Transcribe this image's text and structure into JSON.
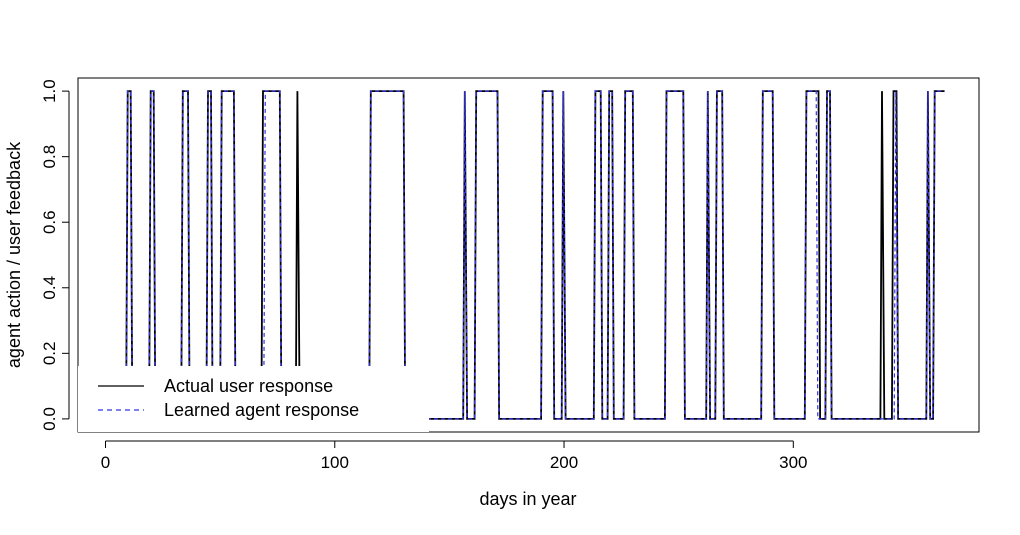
{
  "chart_data": {
    "type": "line",
    "title": "",
    "xlabel": "days in year",
    "ylabel": "agent action / user feedback",
    "xlim": [
      -12,
      381
    ],
    "ylim": [
      -0.04,
      1.04
    ],
    "xticks": [
      0,
      100,
      200,
      300
    ],
    "yticks": [
      0.0,
      0.2,
      0.4,
      0.6,
      0.8,
      1.0
    ],
    "xtick_labels": [
      "0",
      "100",
      "200",
      "300"
    ],
    "ytick_labels": [
      "0.0",
      "0.2",
      "0.4",
      "0.6",
      "0.8",
      "1.0"
    ],
    "grid": false,
    "legend_position": "bottom-left",
    "series": [
      {
        "name": "Actual user response",
        "color": "#000000",
        "style": "solid",
        "ones": [
          [
            10,
            11
          ],
          [
            20,
            21
          ],
          [
            34,
            36
          ],
          [
            45,
            46
          ],
          [
            51,
            56
          ],
          [
            69,
            70
          ],
          [
            71,
            76
          ],
          [
            84,
            84
          ],
          [
            116,
            130
          ],
          [
            157,
            157
          ],
          [
            162,
            171
          ],
          [
            191,
            195
          ],
          [
            200,
            200
          ],
          [
            214,
            216
          ],
          [
            220,
            221
          ],
          [
            227,
            230
          ],
          [
            245,
            252
          ],
          [
            263,
            263
          ],
          [
            267,
            269
          ],
          [
            287,
            291
          ],
          [
            306,
            311
          ],
          [
            315,
            316
          ],
          [
            339,
            339
          ],
          [
            344,
            345
          ],
          [
            359,
            359
          ],
          [
            362,
            366
          ]
        ]
      },
      {
        "name": "Learned agent response",
        "color": "#3333ee",
        "style": "dashed",
        "ones": [
          [
            10,
            11
          ],
          [
            20,
            21
          ],
          [
            34,
            36
          ],
          [
            45,
            46
          ],
          [
            51,
            56
          ],
          [
            70,
            76
          ],
          [
            116,
            130
          ],
          [
            157,
            157
          ],
          [
            162,
            171
          ],
          [
            191,
            195
          ],
          [
            200,
            200
          ],
          [
            214,
            216
          ],
          [
            220,
            221
          ],
          [
            227,
            230
          ],
          [
            245,
            252
          ],
          [
            263,
            263
          ],
          [
            267,
            269
          ],
          [
            287,
            291
          ],
          [
            306,
            310
          ],
          [
            315,
            316
          ],
          [
            345,
            345
          ],
          [
            359,
            359
          ],
          [
            362,
            366
          ]
        ]
      }
    ]
  }
}
